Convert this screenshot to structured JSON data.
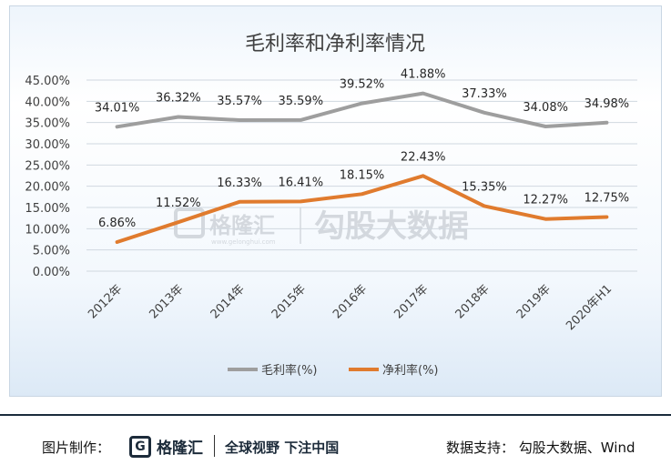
{
  "chart_data": {
    "type": "line",
    "title": "毛利率和净利率情况",
    "categories": [
      "2012年",
      "2013年",
      "2014年",
      "2015年",
      "2016年",
      "2017年",
      "2018年",
      "2019年",
      "2020年H1"
    ],
    "series": [
      {
        "name": "毛利率(%)",
        "color": "#9e9e9e",
        "values": [
          34.01,
          36.32,
          35.57,
          35.59,
          39.52,
          41.88,
          37.33,
          34.08,
          34.98
        ],
        "labels": [
          "34.01%",
          "36.32%",
          "35.57%",
          "35.59%",
          "39.52%",
          "41.88%",
          "37.33%",
          "34.08%",
          "34.98%"
        ]
      },
      {
        "name": "净利率(%)",
        "color": "#e07b2e",
        "values": [
          6.86,
          11.52,
          16.33,
          16.41,
          18.15,
          22.43,
          15.35,
          12.27,
          12.75
        ],
        "labels": [
          "6.86%",
          "11.52%",
          "16.33%",
          "16.41%",
          "18.15%",
          "22.43%",
          "15.35%",
          "12.27%",
          "12.75%"
        ]
      }
    ],
    "ylim": [
      0,
      45
    ],
    "yticks": [
      0,
      5,
      10,
      15,
      20,
      25,
      30,
      35,
      40,
      45
    ],
    "ytick_labels": [
      "0.00%",
      "5.00%",
      "10.00%",
      "15.00%",
      "20.00%",
      "25.00%",
      "30.00%",
      "35.00%",
      "40.00%",
      "45.00%"
    ],
    "grid": true,
    "legend_position": "bottom"
  },
  "watermark": {
    "logo_text": "格隆汇",
    "url_text": "www.gelonghui.com",
    "text": "勾股大数据"
  },
  "footer": {
    "left_label": "图片制作：",
    "logo_text": "格隆汇",
    "slogan": "全球视野 下注中国",
    "right_label": "数据支持： 勾股大数据、Wind"
  },
  "colors": {
    "gross": "#9e9e9e",
    "net": "#e07b2e",
    "title": "#404040",
    "grid": "#d0d8e0"
  }
}
